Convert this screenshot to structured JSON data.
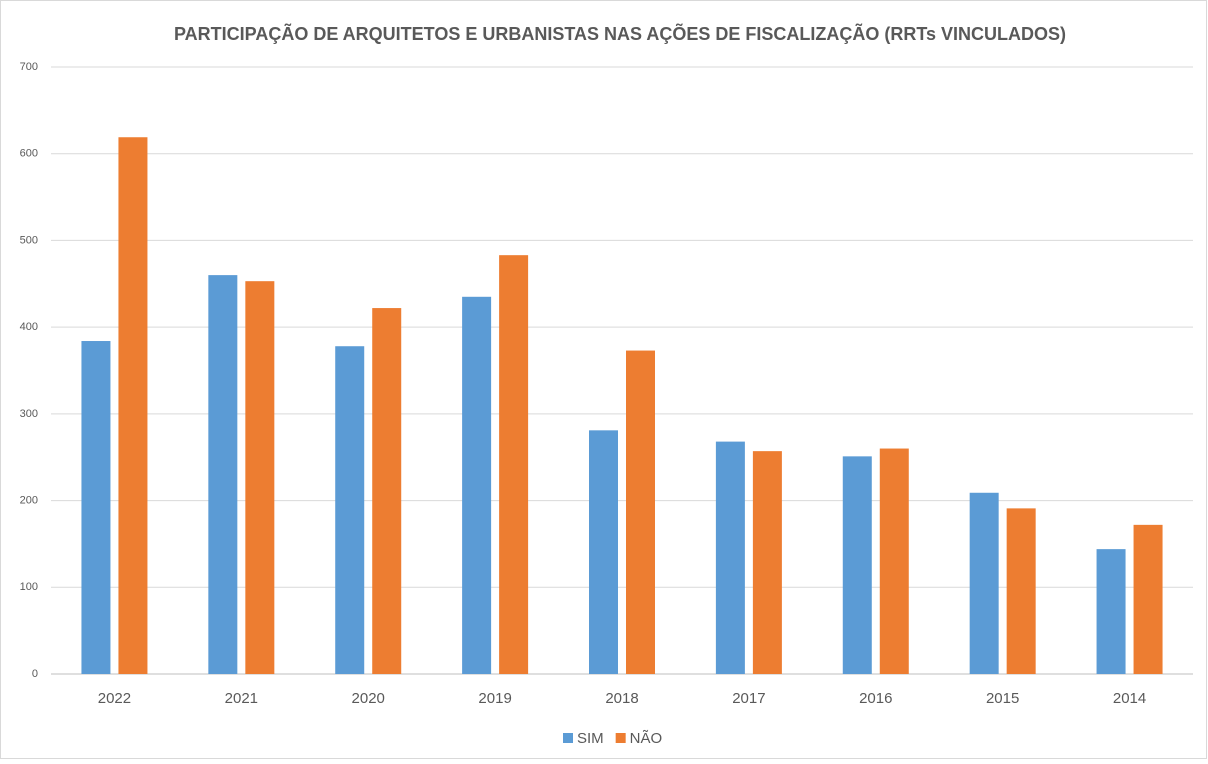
{
  "chart_data": {
    "type": "bar",
    "title": "PARTICIPAÇÃO DE ARQUITETOS E URBANISTAS NAS AÇÕES DE FISCALIZAÇÃO (RRTs VINCULADOS)",
    "categories": [
      "2022",
      "2021",
      "2020",
      "2019",
      "2018",
      "2017",
      "2016",
      "2015",
      "2014"
    ],
    "series": [
      {
        "name": "SIM",
        "color": "#5b9bd5",
        "values": [
          384,
          460,
          378,
          435,
          281,
          268,
          251,
          209,
          144
        ]
      },
      {
        "name": "NÃO",
        "color": "#ed7d31",
        "values": [
          619,
          453,
          422,
          483,
          373,
          257,
          260,
          191,
          172
        ]
      }
    ],
    "ylim": [
      0,
      700
    ],
    "yticks": [
      0,
      100,
      200,
      300,
      400,
      500,
      600,
      700
    ],
    "grid": true,
    "legend": "bottom"
  }
}
